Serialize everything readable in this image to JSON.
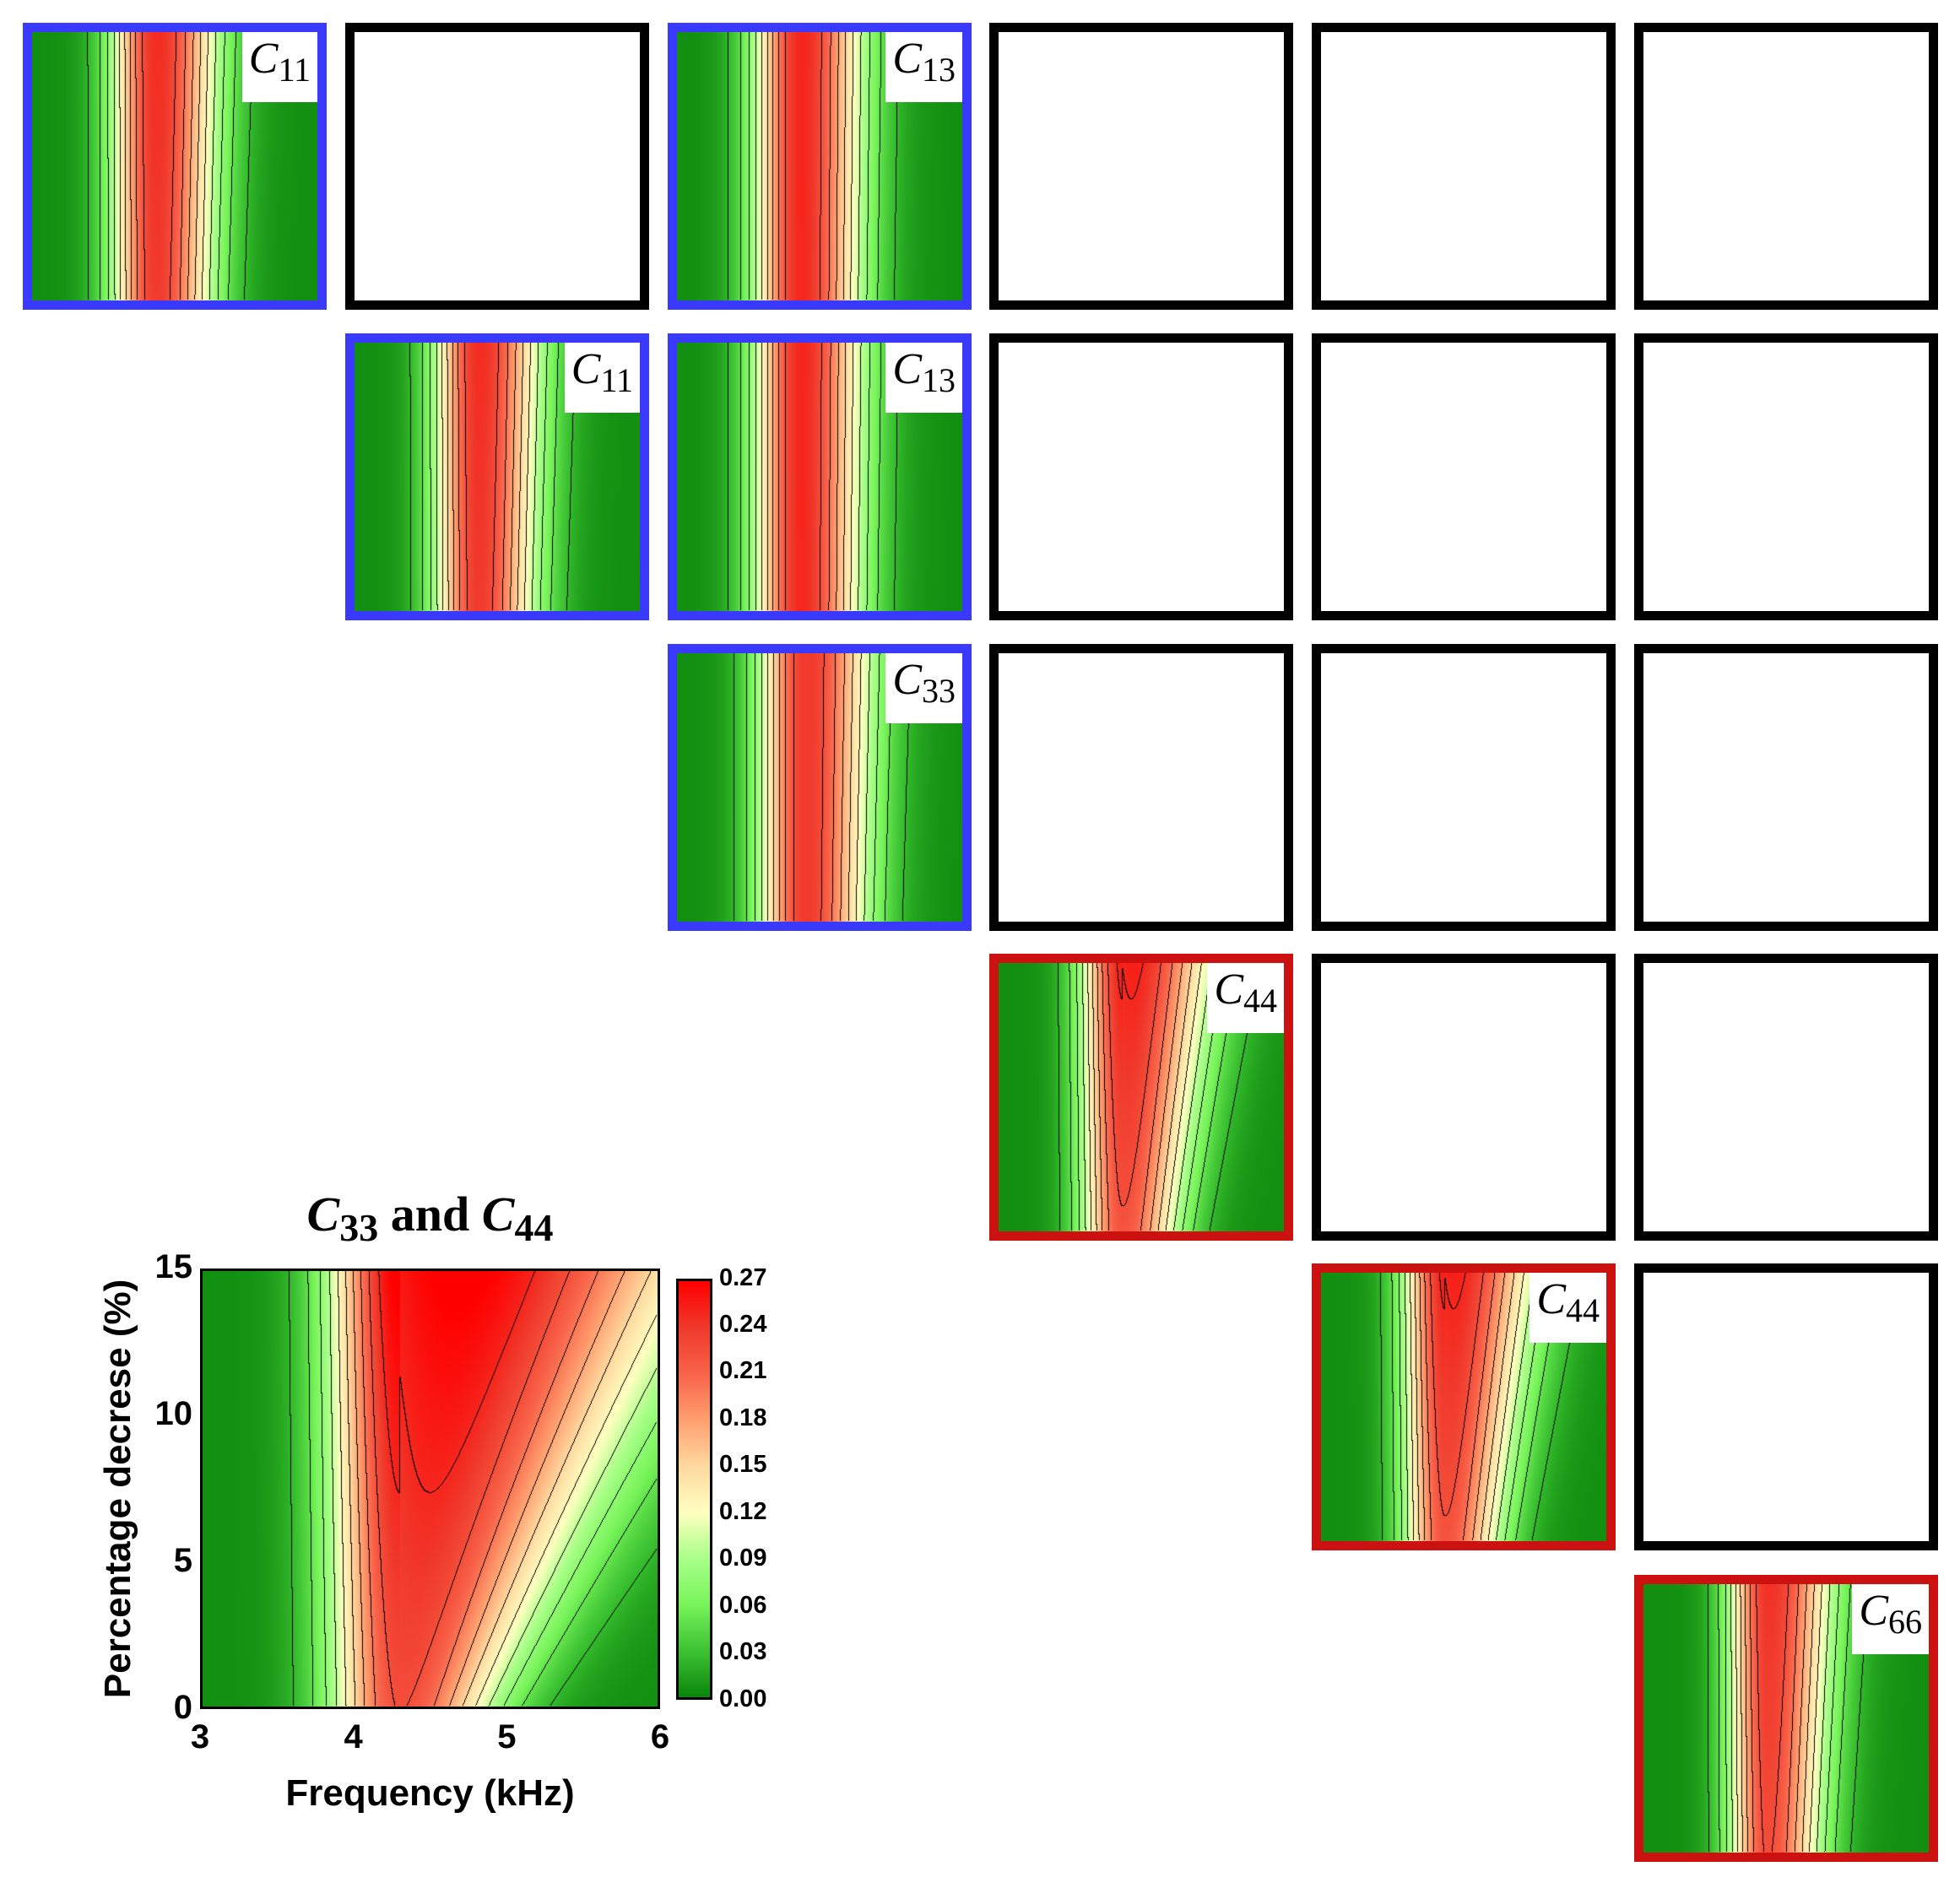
{
  "panels": [
    {
      "row": 0,
      "col": 0,
      "label": {
        "symbol": "C",
        "sub": "11"
      },
      "border": "#3a3aff",
      "filled": true,
      "variant": "c11"
    },
    {
      "row": 0,
      "col": 1,
      "filled": false,
      "border": "#000000"
    },
    {
      "row": 0,
      "col": 2,
      "label": {
        "symbol": "C",
        "sub": "13"
      },
      "border": "#3a3aff",
      "filled": true,
      "variant": "c13"
    },
    {
      "row": 0,
      "col": 3,
      "filled": false,
      "border": "#000000"
    },
    {
      "row": 0,
      "col": 4,
      "filled": false,
      "border": "#000000"
    },
    {
      "row": 0,
      "col": 5,
      "filled": false,
      "border": "#000000"
    },
    {
      "row": 1,
      "col": 1,
      "label": {
        "symbol": "C",
        "sub": "11"
      },
      "border": "#3a3aff",
      "filled": true,
      "variant": "c11"
    },
    {
      "row": 1,
      "col": 2,
      "label": {
        "symbol": "C",
        "sub": "13"
      },
      "border": "#3a3aff",
      "filled": true,
      "variant": "c13"
    },
    {
      "row": 1,
      "col": 3,
      "filled": false,
      "border": "#000000"
    },
    {
      "row": 1,
      "col": 4,
      "filled": false,
      "border": "#000000"
    },
    {
      "row": 1,
      "col": 5,
      "filled": false,
      "border": "#000000"
    },
    {
      "row": 2,
      "col": 2,
      "label": {
        "symbol": "C",
        "sub": "33"
      },
      "border": "#3a3aff",
      "filled": true,
      "variant": "c33"
    },
    {
      "row": 2,
      "col": 3,
      "filled": false,
      "border": "#000000"
    },
    {
      "row": 2,
      "col": 4,
      "filled": false,
      "border": "#000000"
    },
    {
      "row": 2,
      "col": 5,
      "filled": false,
      "border": "#000000"
    },
    {
      "row": 3,
      "col": 3,
      "label": {
        "symbol": "C",
        "sub": "44"
      },
      "border": "#cc1111",
      "filled": true,
      "variant": "c44"
    },
    {
      "row": 3,
      "col": 4,
      "filled": false,
      "border": "#000000"
    },
    {
      "row": 3,
      "col": 5,
      "filled": false,
      "border": "#000000"
    },
    {
      "row": 4,
      "col": 4,
      "label": {
        "symbol": "C",
        "sub": "44"
      },
      "border": "#cc1111",
      "filled": true,
      "variant": "c44"
    },
    {
      "row": 4,
      "col": 5,
      "filled": false,
      "border": "#000000"
    },
    {
      "row": 5,
      "col": 5,
      "label": {
        "symbol": "C",
        "sub": "66"
      },
      "border": "#cc1111",
      "filled": true,
      "variant": "c66"
    }
  ],
  "chart_data": {
    "type": "heatmap",
    "title": {
      "a_symbol": "C",
      "a_sub": "33",
      "joiner": "and",
      "b_symbol": "C",
      "b_sub": "44"
    },
    "xlabel": "Frequency  (kHz)",
    "ylabel": "Percentage decrese (%)",
    "xlim": [
      3,
      6
    ],
    "ylim": [
      0,
      15
    ],
    "xticks": [
      "3",
      "4",
      "5",
      "6"
    ],
    "yticks": [
      "0",
      "5",
      "10",
      "15"
    ],
    "colorbar": {
      "range": [
        0,
        0.27
      ],
      "ticks": [
        "0.00",
        "0.03",
        "0.06",
        "0.09",
        "0.12",
        "0.15",
        "0.18",
        "0.21",
        "0.24",
        "0.27"
      ],
      "colors": [
        "#0a850a",
        "#3cc232",
        "#78f45a",
        "#a8ff88",
        "#ffffc0",
        "#ffd9a0",
        "#ffa070",
        "#f8644a",
        "#f03a2c",
        "#ff0000"
      ]
    },
    "peak": {
      "frequency_khz": 4.3,
      "max_value": 0.27,
      "percentage_at_max": 15
    },
    "grid": false
  }
}
